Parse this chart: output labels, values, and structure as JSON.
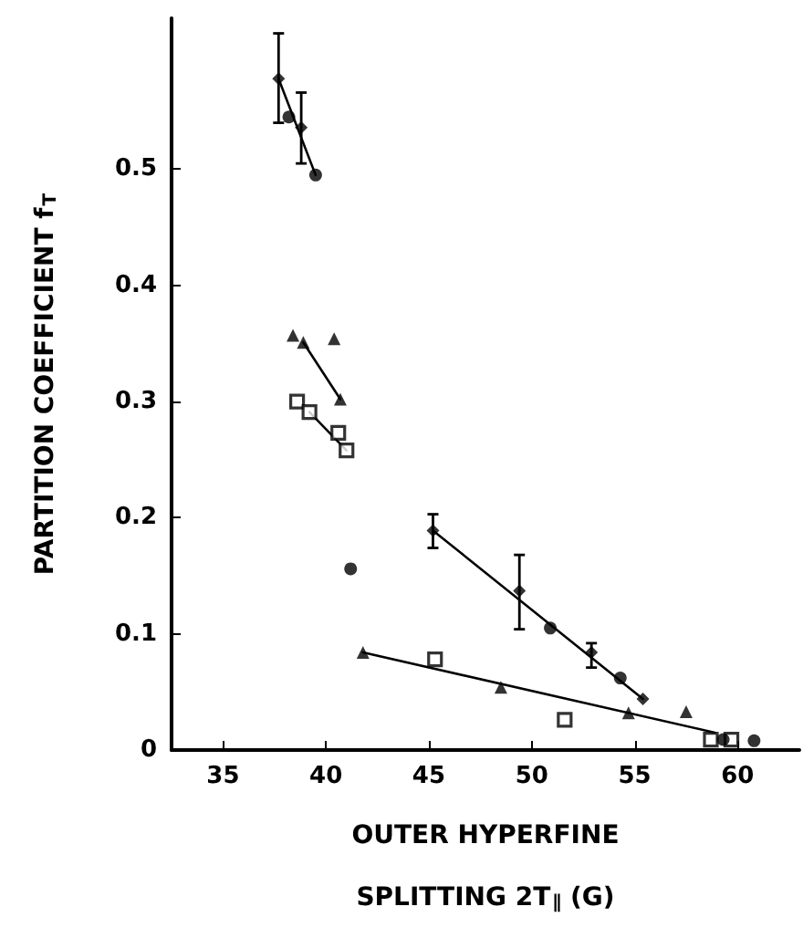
{
  "chart_data": {
    "type": "scatter",
    "xlabel": "OUTER HYPERFINE\nSPLITTING 2T$_{∥}$ (G)",
    "ylabel": "PARTITION COEFFICIENT f$_{T}$",
    "xlim": [
      32.5,
      63
    ],
    "ylim": [
      0,
      0.63
    ],
    "xticks": [
      35,
      40,
      45,
      50,
      55,
      60
    ],
    "yticks": [
      0,
      0.1,
      0.2,
      0.3,
      0.4,
      0.5
    ],
    "grid": false,
    "series": [
      {
        "color": "#000000",
        "marker": "diamond",
        "x": [
          37.7,
          38.8,
          45.2,
          49.4,
          52.9,
          55.4
        ],
        "values": [
          0.578,
          0.536,
          0.189,
          0.137,
          0.084,
          0.044
        ],
        "errors": [
          [
            0.54,
            0.617
          ],
          [
            0.505,
            0.566
          ],
          [
            0.174,
            0.203
          ],
          [
            0.104,
            0.168
          ],
          [
            0.071,
            0.092
          ],
          null
        ]
      },
      {
        "color": "#000000",
        "marker": "circle",
        "x": [
          38.2,
          39.5,
          50.9
        ],
        "values": [
          0.545,
          0.495,
          0.105
        ]
      },
      {
        "color": "#000000",
        "marker": "circle",
        "x": [
          41.2,
          54.3,
          59.3,
          60.8
        ],
        "values": [
          0.156,
          0.062,
          0.009,
          0.008
        ]
      },
      {
        "color": "#000000",
        "marker": "triangle",
        "x": [
          38.4,
          38.9,
          40.4,
          40.7,
          41.8,
          48.5,
          54.7,
          57.5
        ],
        "values": [
          0.357,
          0.351,
          0.354,
          0.302,
          0.084,
          0.054,
          0.032,
          0.033
        ]
      },
      {
        "color": "#000000",
        "marker": "square",
        "x": [
          38.6,
          39.2,
          40.6,
          41.0,
          45.3,
          51.6,
          58.7,
          59.7
        ],
        "values": [
          0.3,
          0.291,
          0.273,
          0.258,
          0.078,
          0.026,
          0.009,
          0.009
        ]
      },
      {
        "type": "line",
        "color": "#000000",
        "marker": "none",
        "x": [
          37.7,
          39.5
        ],
        "values": [
          0.578,
          0.495
        ]
      },
      {
        "type": "line",
        "color": "#000000",
        "marker": "none",
        "x": [
          38.9,
          40.7
        ],
        "values": [
          0.351,
          0.302
        ]
      },
      {
        "type": "line",
        "color": "#000000",
        "marker": "none",
        "x": [
          39.2,
          41.0
        ],
        "values": [
          0.291,
          0.258
        ]
      },
      {
        "type": "line",
        "color": "#000000",
        "marker": "none",
        "x": [
          45.2,
          55.4
        ],
        "values": [
          0.189,
          0.044
        ]
      },
      {
        "type": "line",
        "color": "#000000",
        "marker": "none",
        "x": [
          41.8,
          58.9
        ],
        "values": [
          0.084,
          0.015
        ]
      }
    ]
  }
}
